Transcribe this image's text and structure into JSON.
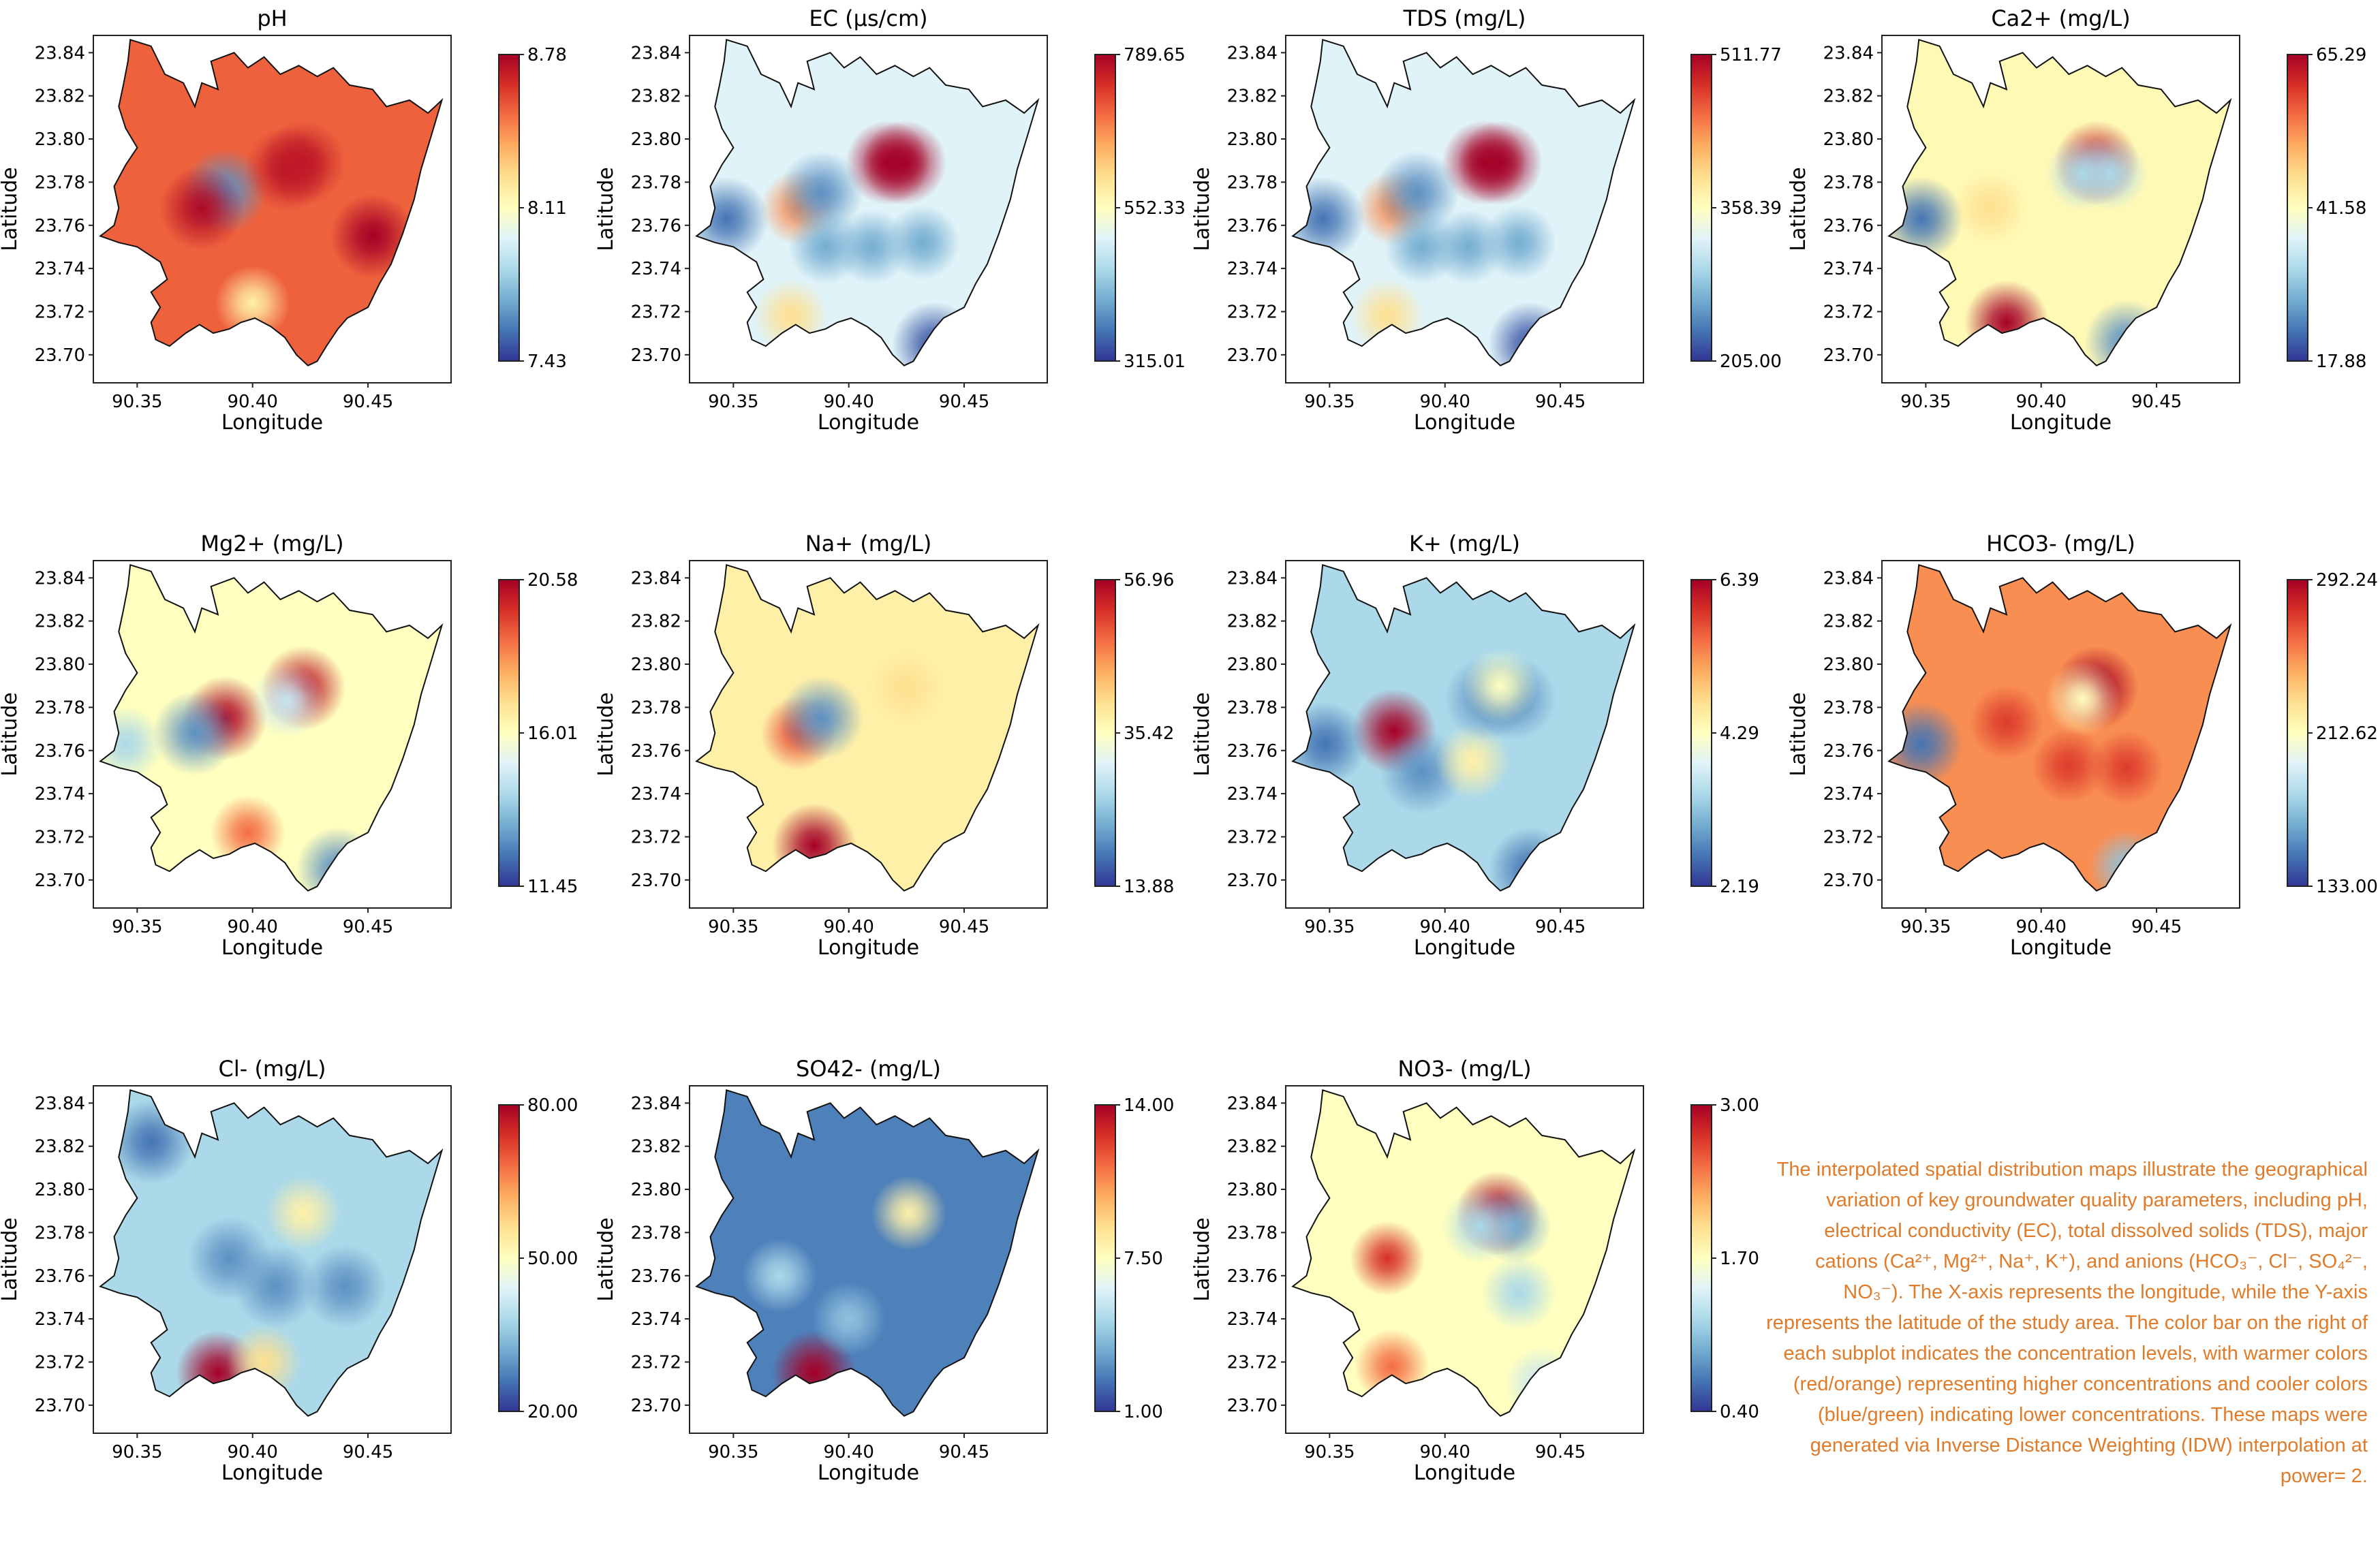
{
  "caption": "The interpolated spatial distribution maps illustrate the geographical variation of key groundwater quality parameters, including pH, electrical conductivity (EC), total dissolved solids (TDS), major cations (Ca²⁺, Mg²⁺, Na⁺, K⁺), and anions (HCO₃⁻, Cl⁻, SO₄²⁻, NO₃⁻). The X-axis represents the longitude, while the Y-axis represents the latitude of the study area. The color bar on the right of each subplot indicates the concentration levels, with warmer colors (red/orange) representing higher concentrations and cooler colors (blue/green) indicating lower concentrations. These maps were generated via Inverse Distance Weighting (IDW) interpolation at power= 2.",
  "colormap": [
    "#313695",
    "#4575b4",
    "#74add1",
    "#abd9e9",
    "#e0f3f8",
    "#ffffbf",
    "#fee090",
    "#fdae61",
    "#f46d43",
    "#d73027",
    "#a50026"
  ],
  "chart_data": [
    {
      "type": "heatmap",
      "title": "pH",
      "xlabel": "Longitude",
      "ylabel": "Latitude",
      "xticks": [
        "90.35",
        "90.40",
        "90.45"
      ],
      "yticks": [
        "23.84",
        "23.82",
        "23.80",
        "23.78",
        "23.76",
        "23.74",
        "23.72",
        "23.70"
      ],
      "colorbar": {
        "min": 7.43,
        "max": 8.78,
        "ticks": [
          "8.78",
          "8.11",
          "7.43"
        ]
      },
      "base": 0.82,
      "blobs": [
        {
          "x": 90.388,
          "y": 23.776,
          "v": 0.15
        },
        {
          "x": 90.4,
          "y": 23.724,
          "v": 0.55
        },
        {
          "x": 90.378,
          "y": 23.768,
          "v": 0.98
        },
        {
          "x": 90.415,
          "y": 23.786,
          "v": 0.95
        },
        {
          "x": 90.422,
          "y": 23.789,
          "v": 0.95
        },
        {
          "x": 90.452,
          "y": 23.755,
          "v": 1.0
        }
      ]
    },
    {
      "type": "heatmap",
      "title": "EC (µs/cm)",
      "xlabel": "Longitude",
      "ylabel": "Latitude",
      "xticks": [
        "90.35",
        "90.40",
        "90.45"
      ],
      "yticks": [
        "23.84",
        "23.82",
        "23.80",
        "23.78",
        "23.76",
        "23.74",
        "23.72",
        "23.70"
      ],
      "colorbar": {
        "min": 315.01,
        "max": 789.65,
        "ticks": [
          "789.65",
          "552.33",
          "315.01"
        ]
      },
      "base": 0.4,
      "blobs": [
        {
          "x": 90.417,
          "y": 23.789,
          "v": 1.0
        },
        {
          "x": 90.424,
          "y": 23.789,
          "v": 1.0
        },
        {
          "x": 90.378,
          "y": 23.768,
          "v": 0.75
        },
        {
          "x": 90.347,
          "y": 23.763,
          "v": 0.1
        },
        {
          "x": 90.388,
          "y": 23.775,
          "v": 0.15
        },
        {
          "x": 90.39,
          "y": 23.75,
          "v": 0.2
        },
        {
          "x": 90.41,
          "y": 23.75,
          "v": 0.2
        },
        {
          "x": 90.432,
          "y": 23.752,
          "v": 0.2
        },
        {
          "x": 90.437,
          "y": 23.705,
          "v": 0.05
        },
        {
          "x": 90.375,
          "y": 23.718,
          "v": 0.6
        }
      ]
    },
    {
      "type": "heatmap",
      "title": "TDS (mg/L)",
      "xlabel": "Longitude",
      "ylabel": "Latitude",
      "xticks": [
        "90.35",
        "90.40",
        "90.45"
      ],
      "yticks": [
        "23.84",
        "23.82",
        "23.80",
        "23.78",
        "23.76",
        "23.74",
        "23.72",
        "23.70"
      ],
      "colorbar": {
        "min": 205.0,
        "max": 511.77,
        "ticks": [
          "511.77",
          "358.39",
          "205.00"
        ]
      },
      "base": 0.4,
      "blobs": [
        {
          "x": 90.417,
          "y": 23.789,
          "v": 1.0
        },
        {
          "x": 90.424,
          "y": 23.789,
          "v": 1.0
        },
        {
          "x": 90.378,
          "y": 23.768,
          "v": 0.75
        },
        {
          "x": 90.347,
          "y": 23.763,
          "v": 0.1
        },
        {
          "x": 90.388,
          "y": 23.775,
          "v": 0.15
        },
        {
          "x": 90.39,
          "y": 23.75,
          "v": 0.2
        },
        {
          "x": 90.41,
          "y": 23.75,
          "v": 0.2
        },
        {
          "x": 90.432,
          "y": 23.752,
          "v": 0.2
        },
        {
          "x": 90.437,
          "y": 23.705,
          "v": 0.05
        },
        {
          "x": 90.375,
          "y": 23.718,
          "v": 0.6
        }
      ]
    },
    {
      "type": "heatmap",
      "title": "Ca2+ (mg/L)",
      "xlabel": "Longitude",
      "ylabel": "Latitude",
      "xticks": [
        "90.35",
        "90.40",
        "90.45"
      ],
      "yticks": [
        "23.84",
        "23.82",
        "23.80",
        "23.78",
        "23.76",
        "23.74",
        "23.72",
        "23.70"
      ],
      "colorbar": {
        "min": 17.88,
        "max": 65.29,
        "ticks": [
          "65.29",
          "41.58",
          "17.88"
        ]
      },
      "base": 0.52,
      "blobs": [
        {
          "x": 90.348,
          "y": 23.763,
          "v": 0.1
        },
        {
          "x": 90.385,
          "y": 23.715,
          "v": 1.0
        },
        {
          "x": 90.424,
          "y": 23.789,
          "v": 0.95
        },
        {
          "x": 90.418,
          "y": 23.784,
          "v": 0.3
        },
        {
          "x": 90.43,
          "y": 23.784,
          "v": 0.3
        },
        {
          "x": 90.378,
          "y": 23.768,
          "v": 0.6
        },
        {
          "x": 90.437,
          "y": 23.706,
          "v": 0.15
        }
      ]
    },
    {
      "type": "heatmap",
      "title": "Mg2+ (mg/L)",
      "xlabel": "Longitude",
      "ylabel": "Latitude",
      "xticks": [
        "90.35",
        "90.40",
        "90.45"
      ],
      "yticks": [
        "23.84",
        "23.82",
        "23.80",
        "23.78",
        "23.76",
        "23.74",
        "23.72",
        "23.70"
      ],
      "colorbar": {
        "min": 11.45,
        "max": 20.58,
        "ticks": [
          "20.58",
          "16.01",
          "11.45"
        ]
      },
      "base": 0.5,
      "blobs": [
        {
          "x": 90.388,
          "y": 23.775,
          "v": 0.98
        },
        {
          "x": 90.422,
          "y": 23.789,
          "v": 0.95
        },
        {
          "x": 90.375,
          "y": 23.768,
          "v": 0.15
        },
        {
          "x": 90.398,
          "y": 23.722,
          "v": 0.8
        },
        {
          "x": 90.437,
          "y": 23.705,
          "v": 0.15
        },
        {
          "x": 90.345,
          "y": 23.763,
          "v": 0.3
        },
        {
          "x": 90.415,
          "y": 23.783,
          "v": 0.35
        }
      ]
    },
    {
      "type": "heatmap",
      "title": "Na+ (mg/L)",
      "xlabel": "Longitude",
      "ylabel": "Latitude",
      "xticks": [
        "90.35",
        "90.40",
        "90.45"
      ],
      "yticks": [
        "23.84",
        "23.82",
        "23.80",
        "23.78",
        "23.76",
        "23.74",
        "23.72",
        "23.70"
      ],
      "colorbar": {
        "min": 13.88,
        "max": 56.96,
        "ticks": [
          "56.96",
          "35.42",
          "13.88"
        ]
      },
      "base": 0.55,
      "blobs": [
        {
          "x": 90.385,
          "y": 23.716,
          "v": 1.0
        },
        {
          "x": 90.378,
          "y": 23.768,
          "v": 0.85
        },
        {
          "x": 90.388,
          "y": 23.775,
          "v": 0.15
        },
        {
          "x": 90.425,
          "y": 23.789,
          "v": 0.6
        }
      ]
    },
    {
      "type": "heatmap",
      "title": "K+ (mg/L)",
      "xlabel": "Longitude",
      "ylabel": "Latitude",
      "xticks": [
        "90.35",
        "90.40",
        "90.45"
      ],
      "yticks": [
        "23.84",
        "23.82",
        "23.80",
        "23.78",
        "23.76",
        "23.74",
        "23.72",
        "23.70"
      ],
      "colorbar": {
        "min": 2.19,
        "max": 6.39,
        "ticks": [
          "6.39",
          "4.29",
          "2.19"
        ]
      },
      "base": 0.3,
      "blobs": [
        {
          "x": 90.378,
          "y": 23.769,
          "v": 1.0
        },
        {
          "x": 90.348,
          "y": 23.763,
          "v": 0.1
        },
        {
          "x": 90.39,
          "y": 23.75,
          "v": 0.15
        },
        {
          "x": 90.412,
          "y": 23.755,
          "v": 0.55
        },
        {
          "x": 90.437,
          "y": 23.705,
          "v": 0.1
        },
        {
          "x": 90.418,
          "y": 23.784,
          "v": 0.15
        },
        {
          "x": 90.43,
          "y": 23.784,
          "v": 0.15
        },
        {
          "x": 90.424,
          "y": 23.79,
          "v": 0.5
        }
      ]
    },
    {
      "type": "heatmap",
      "title": "HCO3- (mg/L)",
      "xlabel": "Longitude",
      "ylabel": "Latitude",
      "xticks": [
        "90.35",
        "90.40",
        "90.45"
      ],
      "yticks": [
        "23.84",
        "23.82",
        "23.80",
        "23.78",
        "23.76",
        "23.74",
        "23.72",
        "23.70"
      ],
      "colorbar": {
        "min": 133.0,
        "max": 292.24,
        "ticks": [
          "292.24",
          "212.62",
          "133.00"
        ]
      },
      "base": 0.75,
      "blobs": [
        {
          "x": 90.348,
          "y": 23.763,
          "v": 0.1
        },
        {
          "x": 90.424,
          "y": 23.789,
          "v": 1.0
        },
        {
          "x": 90.418,
          "y": 23.784,
          "v": 0.5
        },
        {
          "x": 90.385,
          "y": 23.773,
          "v": 0.88
        },
        {
          "x": 90.412,
          "y": 23.753,
          "v": 0.88
        },
        {
          "x": 90.437,
          "y": 23.752,
          "v": 0.88
        },
        {
          "x": 90.437,
          "y": 23.706,
          "v": 0.25
        }
      ]
    },
    {
      "type": "heatmap",
      "title": "Cl- (mg/L)",
      "xlabel": "Longitude",
      "ylabel": "Latitude",
      "xticks": [
        "90.35",
        "90.40",
        "90.45"
      ],
      "yticks": [
        "23.84",
        "23.82",
        "23.80",
        "23.78",
        "23.76",
        "23.74",
        "23.72",
        "23.70"
      ],
      "colorbar": {
        "min": 20.0,
        "max": 80.0,
        "ticks": [
          "80.00",
          "50.00",
          "20.00"
        ]
      },
      "base": 0.3,
      "blobs": [
        {
          "x": 90.385,
          "y": 23.715,
          "v": 1.0
        },
        {
          "x": 90.356,
          "y": 23.822,
          "v": 0.1
        },
        {
          "x": 90.422,
          "y": 23.789,
          "v": 0.55
        },
        {
          "x": 90.39,
          "y": 23.768,
          "v": 0.15
        },
        {
          "x": 90.41,
          "y": 23.755,
          "v": 0.15
        },
        {
          "x": 90.44,
          "y": 23.755,
          "v": 0.15
        },
        {
          "x": 90.405,
          "y": 23.72,
          "v": 0.6
        }
      ]
    },
    {
      "type": "heatmap",
      "title": "SO42- (mg/L)",
      "xlabel": "Longitude",
      "ylabel": "Latitude",
      "xticks": [
        "90.35",
        "90.40",
        "90.45"
      ],
      "yticks": [
        "23.84",
        "23.82",
        "23.80",
        "23.78",
        "23.76",
        "23.74",
        "23.72",
        "23.70"
      ],
      "colorbar": {
        "min": 1.0,
        "max": 14.0,
        "ticks": [
          "14.00",
          "7.50",
          "1.00"
        ]
      },
      "base": 0.12,
      "blobs": [
        {
          "x": 90.385,
          "y": 23.715,
          "v": 1.0
        },
        {
          "x": 90.426,
          "y": 23.789,
          "v": 0.55
        },
        {
          "x": 90.37,
          "y": 23.76,
          "v": 0.3
        },
        {
          "x": 90.4,
          "y": 23.74,
          "v": 0.25
        }
      ]
    },
    {
      "type": "heatmap",
      "title": "NO3- (mg/L)",
      "xlabel": "Longitude",
      "ylabel": "Latitude",
      "xticks": [
        "90.35",
        "90.40",
        "90.45"
      ],
      "yticks": [
        "23.84",
        "23.82",
        "23.80",
        "23.78",
        "23.76",
        "23.74",
        "23.72",
        "23.70"
      ],
      "colorbar": {
        "min": 0.4,
        "max": 3.0,
        "ticks": [
          "3.00",
          "1.70",
          "0.40"
        ]
      },
      "base": 0.5,
      "blobs": [
        {
          "x": 90.423,
          "y": 23.789,
          "v": 1.0
        },
        {
          "x": 90.375,
          "y": 23.768,
          "v": 0.9
        },
        {
          "x": 90.377,
          "y": 23.718,
          "v": 0.8
        },
        {
          "x": 90.43,
          "y": 23.783,
          "v": 0.2
        },
        {
          "x": 90.415,
          "y": 23.783,
          "v": 0.3
        },
        {
          "x": 90.432,
          "y": 23.752,
          "v": 0.3
        },
        {
          "x": 90.442,
          "y": 23.71,
          "v": 0.35
        }
      ]
    }
  ]
}
